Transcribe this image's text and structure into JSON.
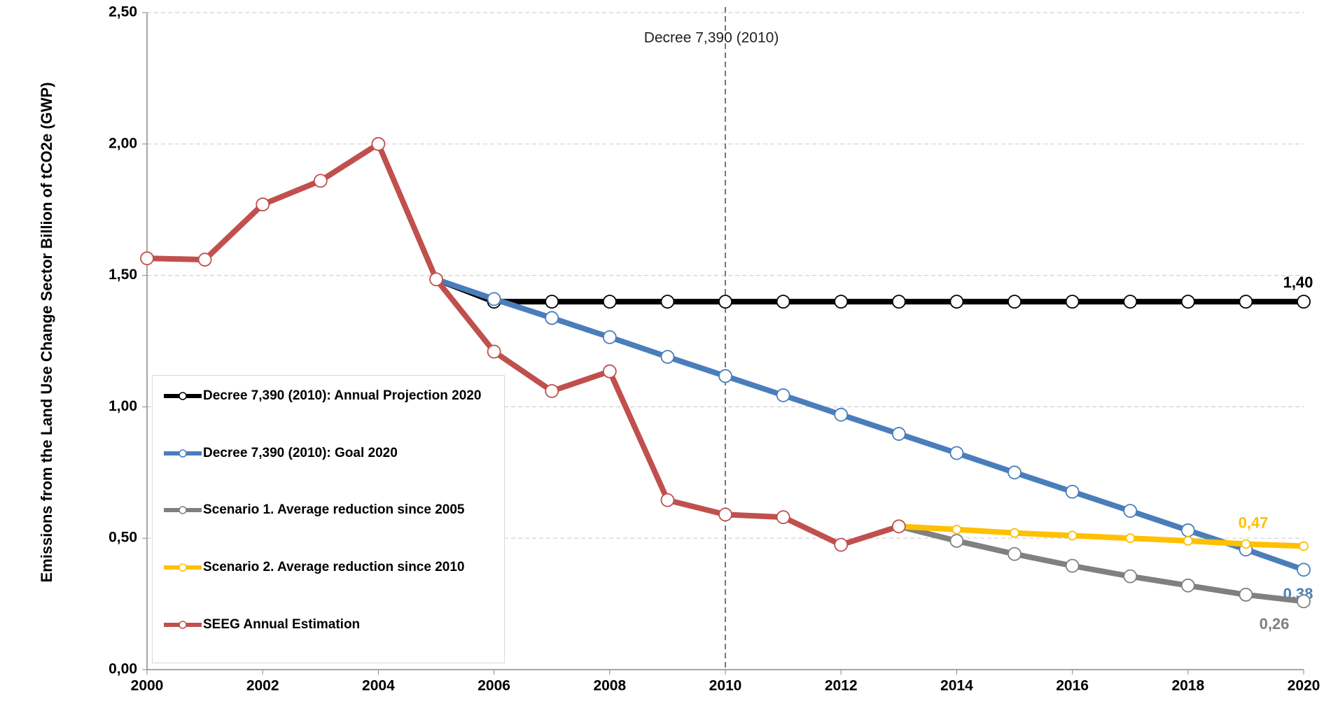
{
  "chart_data": {
    "type": "line",
    "y_label": "Emissions from the Land Use Change Sector Billion of tCO2e (GWP)",
    "x": [
      2000,
      2001,
      2002,
      2003,
      2004,
      2005,
      2006,
      2007,
      2008,
      2009,
      2010,
      2011,
      2012,
      2013,
      2014,
      2015,
      2016,
      2017,
      2018,
      2019,
      2020
    ],
    "xlim": [
      2000,
      2020
    ],
    "xticks": [
      2000,
      2002,
      2004,
      2006,
      2008,
      2010,
      2012,
      2014,
      2016,
      2018,
      2020
    ],
    "ylim": [
      0,
      2.5
    ],
    "yticks": [
      {
        "value": 0,
        "label": "0,00"
      },
      {
        "value": 0.5,
        "label": "0,50"
      },
      {
        "value": 1,
        "label": "1,00"
      },
      {
        "value": 1.5,
        "label": "1,50"
      },
      {
        "value": 2,
        "label": "2,00"
      },
      {
        "value": 2.5,
        "label": "2,50"
      }
    ],
    "grid": true,
    "annotation": {
      "x": 2010,
      "text": "Decree 7,390 (2010)"
    },
    "legend": "lower left",
    "series": [
      {
        "name": "Decree 7,390 (2010): Annual Projection 2020",
        "color": "#000000",
        "values": [
          null,
          null,
          null,
          null,
          null,
          1.485,
          1.4,
          1.4,
          1.4,
          1.4,
          1.4,
          1.4,
          1.4,
          1.4,
          1.4,
          1.4,
          1.4,
          1.4,
          1.4,
          1.4,
          1.4
        ],
        "value_labels": [
          null,
          null,
          null,
          null,
          null,
          null,
          null,
          null,
          null,
          null,
          null,
          null,
          null,
          null,
          null,
          null,
          null,
          null,
          null,
          null,
          "1,40"
        ]
      },
      {
        "name": "Decree 7,390 (2010): Goal 2020",
        "color": "#4a7ebb",
        "values": [
          null,
          null,
          null,
          null,
          null,
          1.485,
          1.41,
          1.338,
          1.265,
          1.19,
          1.117,
          1.044,
          0.97,
          0.897,
          0.824,
          0.75,
          0.677,
          0.604,
          0.53,
          0.457,
          0.38
        ],
        "value_labels": [
          null,
          null,
          null,
          null,
          null,
          null,
          null,
          null,
          null,
          null,
          null,
          null,
          null,
          null,
          null,
          null,
          null,
          null,
          null,
          null,
          "0,38"
        ]
      },
      {
        "name": "Scenario 1. Average reduction since 2005",
        "color": "#808080",
        "values": [
          null,
          null,
          null,
          null,
          null,
          null,
          null,
          null,
          null,
          null,
          null,
          null,
          null,
          0.545,
          0.49,
          0.44,
          0.395,
          0.355,
          0.32,
          0.285,
          0.26
        ],
        "value_labels": [
          null,
          null,
          null,
          null,
          null,
          null,
          null,
          null,
          null,
          null,
          null,
          null,
          null,
          null,
          null,
          null,
          null,
          null,
          null,
          null,
          "0,26"
        ]
      },
      {
        "name": "Scenario 2. Average reduction since 2010",
        "color": "#ffc000",
        "values": [
          null,
          null,
          null,
          null,
          null,
          null,
          null,
          null,
          null,
          null,
          null,
          null,
          null,
          0.545,
          0.533,
          0.52,
          0.51,
          0.5,
          0.49,
          0.478,
          0.47
        ],
        "value_labels": [
          null,
          null,
          null,
          null,
          null,
          null,
          null,
          null,
          null,
          null,
          null,
          null,
          null,
          null,
          null,
          null,
          null,
          null,
          null,
          null,
          "0,47"
        ]
      },
      {
        "name": "SEEG Annual Estimation",
        "color": "#c0504d",
        "values": [
          1.565,
          1.56,
          1.77,
          1.86,
          2.0,
          1.485,
          1.21,
          1.06,
          1.135,
          0.645,
          0.59,
          0.58,
          0.475,
          0.545,
          null,
          null,
          null,
          null,
          null,
          null,
          null
        ]
      }
    ]
  }
}
